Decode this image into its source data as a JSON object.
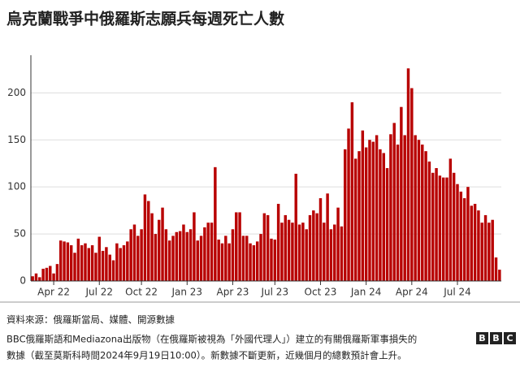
{
  "chart_data": {
    "type": "bar",
    "title": "烏克蘭戰爭中俄羅斯志願兵每週死亡人數",
    "source": "資料來源：俄羅斯當局、媒體、開源數據",
    "note_lines": [
      "BBC俄羅斯語和Mediazona出版物（在俄羅斯被視為「外國代理人」）建立的有關俄羅斯軍事損失的",
      "數據（截至莫斯科時間2024年9月19日10:00）。新數據不斷更新，近幾個月的總數預計會上升。"
    ],
    "logo": [
      "B",
      "B",
      "C"
    ],
    "color": "#b80000",
    "grid": true,
    "ylim": [
      0,
      240
    ],
    "yticks": [
      0,
      50,
      100,
      150,
      200
    ],
    "categories": [
      null,
      null,
      null,
      null,
      null,
      null,
      "Apr 22",
      null,
      null,
      null,
      null,
      null,
      null,
      null,
      null,
      null,
      null,
      null,
      null,
      "Jul 22",
      null,
      null,
      null,
      null,
      null,
      null,
      null,
      null,
      null,
      null,
      null,
      "Oct 22",
      null,
      null,
      null,
      null,
      null,
      null,
      null,
      null,
      null,
      null,
      null,
      null,
      "Jan 23",
      null,
      null,
      null,
      null,
      null,
      null,
      null,
      null,
      null,
      null,
      null,
      null,
      "Apr 23",
      null,
      null,
      null,
      null,
      null,
      null,
      null,
      null,
      null,
      null,
      null,
      "Jul 23",
      null,
      null,
      null,
      null,
      null,
      null,
      null,
      null,
      null,
      null,
      null,
      null,
      "Oct 23",
      null,
      null,
      null,
      null,
      null,
      null,
      null,
      null,
      null,
      null,
      null,
      null,
      "Jan 24",
      null,
      null,
      null,
      null,
      null,
      null,
      null,
      null,
      null,
      null,
      null,
      null,
      "Apr 24",
      null,
      null,
      null,
      null,
      null,
      null,
      null,
      null,
      null,
      null,
      null,
      null,
      "Jul 24",
      null,
      null,
      null,
      null,
      null,
      null,
      null,
      null,
      null,
      null,
      null,
      null
    ],
    "values": [
      5,
      8,
      4,
      13,
      14,
      16,
      8,
      18,
      43,
      42,
      41,
      38,
      30,
      45,
      38,
      40,
      35,
      38,
      30,
      47,
      32,
      36,
      28,
      22,
      40,
      35,
      38,
      42,
      55,
      60,
      48,
      55,
      92,
      85,
      72,
      50,
      65,
      78,
      55,
      43,
      48,
      52,
      53,
      60,
      52,
      55,
      73,
      43,
      48,
      57,
      62,
      62,
      121,
      44,
      40,
      48,
      40,
      55,
      73,
      73,
      48,
      48,
      40,
      38,
      42,
      50,
      72,
      70,
      45,
      44,
      82,
      62,
      70,
      65,
      62,
      114,
      60,
      62,
      55,
      70,
      75,
      72,
      88,
      62,
      93,
      55,
      60,
      78,
      58,
      140,
      162,
      190,
      130,
      138,
      160,
      142,
      150,
      148,
      155,
      140,
      136,
      120,
      156,
      168,
      145,
      185,
      155,
      226,
      205,
      155,
      150,
      145,
      138,
      127,
      115,
      120,
      112,
      110,
      110,
      130,
      115,
      103,
      95,
      88,
      100,
      80,
      82,
      75,
      62,
      70,
      62,
      65,
      25,
      12
    ]
  }
}
